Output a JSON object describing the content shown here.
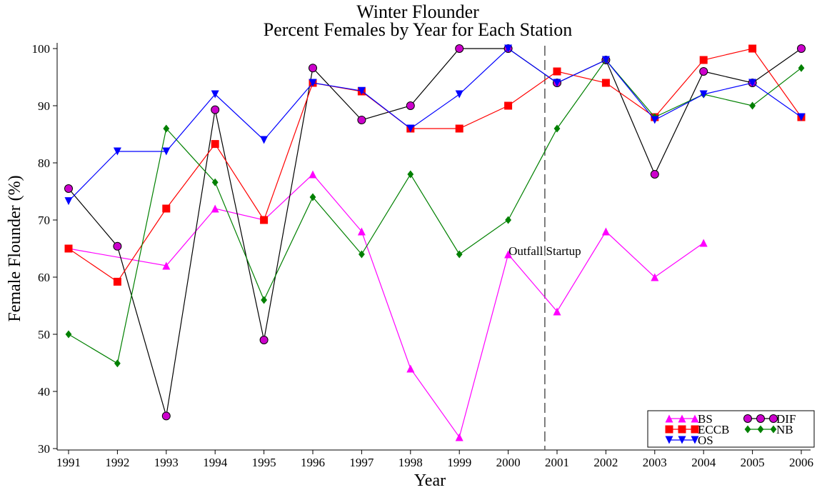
{
  "chart_data": {
    "type": "line",
    "title": "Winter Flounder",
    "subtitle": "Percent Females by Year for Each Station",
    "x_label": "Year",
    "y_label": "Female Flounder (%)",
    "xlim": [
      1991,
      2006
    ],
    "xticks": [
      1991,
      1992,
      1993,
      1994,
      1995,
      1996,
      1997,
      1998,
      1999,
      2000,
      2001,
      2002,
      2003,
      2004,
      2005,
      2006
    ],
    "ylim": [
      30,
      100
    ],
    "yticks": [
      30,
      40,
      50,
      60,
      70,
      80,
      90,
      100
    ],
    "legend": "lower right",
    "vline": {
      "x": 2000.75,
      "label": "Outfall Startup"
    },
    "series": [
      {
        "name": "BS",
        "color": "#ff00ff",
        "marker": "triangle-up",
        "x": [
          1991,
          1993,
          1994,
          1995,
          1996,
          1997,
          1998,
          1999,
          2000,
          2001,
          2002,
          2003,
          2004
        ],
        "values": [
          65,
          62,
          72,
          70,
          78,
          68,
          44,
          32,
          64,
          54,
          68,
          60,
          66
        ]
      },
      {
        "name": "DIF",
        "color": "#cc00cc",
        "line_color": "#000000",
        "marker": "circle",
        "x": [
          1991,
          1992,
          1993,
          1994,
          1995,
          1996,
          1997,
          1998,
          1999,
          2000,
          2001,
          2002,
          2003,
          2004,
          2005,
          2006
        ],
        "values": [
          75.5,
          65.4,
          35.7,
          89.3,
          49,
          96.6,
          87.5,
          90,
          100,
          100,
          94,
          98,
          78,
          96,
          94,
          100
        ]
      },
      {
        "name": "ECCB",
        "color": "#ff0000",
        "marker": "square",
        "x": [
          1991,
          1992,
          1993,
          1994,
          1995,
          1996,
          1997,
          1998,
          1999,
          2000,
          2001,
          2002,
          2003,
          2004,
          2005,
          2006
        ],
        "values": [
          65,
          59.2,
          72,
          83.3,
          70,
          94,
          92.5,
          86,
          86,
          90,
          96,
          94,
          88,
          98,
          100,
          88
        ]
      },
      {
        "name": "NB",
        "color": "#008000",
        "marker": "diamond",
        "x": [
          1991,
          1992,
          1993,
          1994,
          1995,
          1996,
          1997,
          1998,
          1999,
          2000,
          2001,
          2002,
          2003,
          2004,
          2005,
          2006
        ],
        "values": [
          50,
          44.9,
          86,
          76.6,
          56,
          74,
          64,
          78,
          64,
          70,
          86,
          98,
          88,
          92,
          90,
          96.6
        ]
      },
      {
        "name": "OS",
        "color": "#0000ff",
        "marker": "triangle-down",
        "x": [
          1991,
          1992,
          1993,
          1994,
          1995,
          1996,
          1997,
          1998,
          1999,
          2000,
          2001,
          2002,
          2003,
          2004,
          2005,
          2006
        ],
        "values": [
          73.3,
          82,
          82,
          92,
          84,
          94,
          92.6,
          86,
          92,
          100,
          94,
          98,
          87.5,
          92,
          94,
          88
        ]
      }
    ]
  }
}
